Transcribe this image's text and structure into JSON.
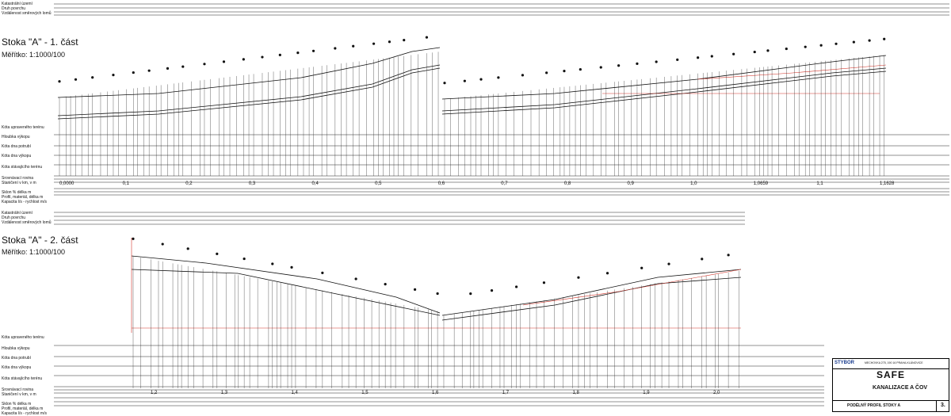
{
  "section1": {
    "header": [
      "Katastrální území",
      "Druh povrchu",
      "Vzdálenost směrových lomů"
    ],
    "title": "Stoka \"A\" - 1. část",
    "scale": "Měřítko: 1:1000/100",
    "row_labels": [
      "Kóta upraveného terénu",
      "Hloubka výkopu",
      "Kóta dna potrubí",
      "Kóta dna výkopu",
      "Kóta stávajícího terénu",
      "Srovnávací rovina",
      "Staničení v km, v m"
    ],
    "bottom_labels": [
      "Sklon % délka m",
      "Profil, materiál, délka m",
      "Kapacita l/s - rychlost m/s"
    ],
    "km_marks": [
      "0,0000",
      "0,1",
      "0,2",
      "0,3",
      "0,4",
      "0,5",
      "0,6",
      "0,7",
      "0,8",
      "0,9",
      "1,0",
      "1,0659",
      "1,1",
      "1,1628"
    ]
  },
  "section2": {
    "header": [
      "Katastrální území",
      "Druh povrchu",
      "Vzdálenost směrových lomů"
    ],
    "title": "Stoka \"A\" - 2. část",
    "scale": "Měřítko: 1:1000/100",
    "row_labels": [
      "Kóta upraveného terénu",
      "Hloubka výkopu",
      "Kóta dna potrubí",
      "Kóta dna výkopu",
      "Kóta stávajícího terénu",
      "Srovnávací rovina",
      "Staničení v km, v m"
    ],
    "bottom_labels": [
      "Sklon % délka m",
      "Profil, materiál, délka m",
      "Kapacita l/s - rychlost m/s"
    ],
    "km_marks": [
      "1,2",
      "1,3",
      "1,4",
      "1,5",
      "1,6",
      "1,7",
      "1,8",
      "1,9",
      "2,0"
    ]
  },
  "titleblock": {
    "company": "STYBOR",
    "address": "MECHOVKA 275, 190 16 PRAHA-KLÁNOVICE",
    "logo": "SAFE",
    "project": "KANALIZACE A ČOV",
    "sheet_title": "PODÉLNÝ PROFIL STOKY A",
    "sheet_no": "3."
  },
  "colors": {
    "line": "#111111",
    "red": "#d4352a",
    "grid": "#222222"
  }
}
